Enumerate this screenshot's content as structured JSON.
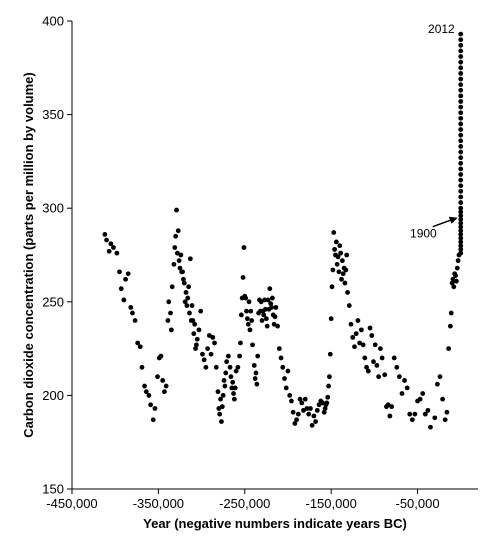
{
  "chart_data": {
    "type": "scatter",
    "title": "",
    "xlabel": "Year (negative numbers indicate years BC)",
    "ylabel": "Carbon dioxide concentration (parts per million by volume)",
    "xlim": [
      -450000,
      20000
    ],
    "ylim": [
      150,
      400
    ],
    "x_ticks": [
      "-450,000",
      "-350,000",
      "-250,000",
      "-150,000",
      "-50,000"
    ],
    "x_tick_values": [
      -450000,
      -350000,
      -250000,
      -150000,
      -50000
    ],
    "y_ticks": [
      "150",
      "200",
      "250",
      "300",
      "350",
      "400"
    ],
    "y_tick_values": [
      150,
      200,
      250,
      300,
      350,
      400
    ],
    "grid": false,
    "legend": "none",
    "marker_color": "#000000",
    "annotations": [
      {
        "text": "2012",
        "x": 0,
        "y": 394,
        "note": "label above top point of vertical series"
      },
      {
        "text": "1900",
        "x": 0,
        "y": 296,
        "note": "label with arrow pointing to series"
      }
    ],
    "points": [
      [
        -412000,
        286
      ],
      [
        -410000,
        283
      ],
      [
        -407000,
        277
      ],
      [
        -405000,
        281
      ],
      [
        -402000,
        279
      ],
      [
        -398000,
        276
      ],
      [
        -395000,
        266
      ],
      [
        -393000,
        257
      ],
      [
        -390000,
        251
      ],
      [
        -388000,
        262
      ],
      [
        -385000,
        265
      ],
      [
        -382000,
        247
      ],
      [
        -380000,
        244
      ],
      [
        -377000,
        240
      ],
      [
        -374000,
        228
      ],
      [
        -371000,
        226
      ],
      [
        -369000,
        215
      ],
      [
        -366000,
        205
      ],
      [
        -364000,
        202
      ],
      [
        -361000,
        200
      ],
      [
        -359000,
        195
      ],
      [
        -356000,
        187
      ],
      [
        -354000,
        193
      ],
      [
        -351000,
        210
      ],
      [
        -349000,
        220
      ],
      [
        -347000,
        221
      ],
      [
        -345000,
        208
      ],
      [
        -343000,
        202
      ],
      [
        -341000,
        205
      ],
      [
        -339000,
        240
      ],
      [
        -338000,
        250
      ],
      [
        -336000,
        244
      ],
      [
        -335000,
        235
      ],
      [
        -334000,
        258
      ],
      [
        -332000,
        270
      ],
      [
        -331000,
        279
      ],
      [
        -330000,
        285
      ],
      [
        -329000,
        299
      ],
      [
        -328000,
        276
      ],
      [
        -327000,
        288
      ],
      [
        -326000,
        272
      ],
      [
        -325000,
        268
      ],
      [
        -324000,
        275
      ],
      [
        -323000,
        266
      ],
      [
        -322000,
        266
      ],
      [
        -321000,
        262
      ],
      [
        -320000,
        260
      ],
      [
        -319000,
        250
      ],
      [
        -318000,
        255
      ],
      [
        -317000,
        248
      ],
      [
        -316000,
        252
      ],
      [
        -315000,
        258
      ],
      [
        -314000,
        244
      ],
      [
        -313000,
        273
      ],
      [
        -312000,
        240
      ],
      [
        -311000,
        248
      ],
      [
        -310000,
        240
      ],
      [
        -309000,
        233
      ],
      [
        -308000,
        238
      ],
      [
        -307000,
        225
      ],
      [
        -306000,
        227
      ],
      [
        -305000,
        230
      ],
      [
        -303000,
        235
      ],
      [
        -301000,
        245
      ],
      [
        -299000,
        222
      ],
      [
        -297000,
        219
      ],
      [
        -295000,
        215
      ],
      [
        -293000,
        225
      ],
      [
        -291000,
        232
      ],
      [
        -289000,
        222
      ],
      [
        -287000,
        231
      ],
      [
        -285000,
        228
      ],
      [
        -283000,
        215
      ],
      [
        -281000,
        202
      ],
      [
        -280000,
        193
      ],
      [
        -279000,
        190
      ],
      [
        -278000,
        198
      ],
      [
        -277000,
        186
      ],
      [
        -276000,
        194
      ],
      [
        -275000,
        200
      ],
      [
        -274000,
        208
      ],
      [
        -273000,
        205
      ],
      [
        -272000,
        212
      ],
      [
        -271000,
        218
      ],
      [
        -269000,
        221
      ],
      [
        -267000,
        215
      ],
      [
        -266000,
        210
      ],
      [
        -265000,
        204
      ],
      [
        -264000,
        207
      ],
      [
        -263000,
        201
      ],
      [
        -262000,
        198
      ],
      [
        -261000,
        204
      ],
      [
        -260000,
        213
      ],
      [
        -258000,
        215
      ],
      [
        -256000,
        221
      ],
      [
        -255000,
        228
      ],
      [
        -254000,
        243
      ],
      [
        -253000,
        252
      ],
      [
        -252000,
        263
      ],
      [
        -251000,
        279
      ],
      [
        -250000,
        253
      ],
      [
        -249000,
        252
      ],
      [
        -248000,
        245
      ],
      [
        -247000,
        241
      ],
      [
        -246000,
        238
      ],
      [
        -245000,
        250
      ],
      [
        -244000,
        235
      ],
      [
        -243000,
        245
      ],
      [
        -242000,
        240
      ],
      [
        -241000,
        227
      ],
      [
        -239000,
        216
      ],
      [
        -238000,
        209
      ],
      [
        -237000,
        212
      ],
      [
        -236000,
        206
      ],
      [
        -235000,
        221
      ],
      [
        -234000,
        244
      ],
      [
        -233000,
        251
      ],
      [
        -232000,
        245
      ],
      [
        -231000,
        250
      ],
      [
        -230000,
        240
      ],
      [
        -229000,
        245
      ],
      [
        -228000,
        243
      ],
      [
        -227000,
        251
      ],
      [
        -226000,
        246
      ],
      [
        -225000,
        241
      ],
      [
        -224000,
        237
      ],
      [
        -223000,
        251
      ],
      [
        -222000,
        246
      ],
      [
        -221000,
        257
      ],
      [
        -220000,
        249
      ],
      [
        -219000,
        247
      ],
      [
        -218000,
        252
      ],
      [
        -217000,
        243
      ],
      [
        -216000,
        238
      ],
      [
        -215000,
        242
      ],
      [
        -214000,
        247
      ],
      [
        -212000,
        237
      ],
      [
        -210000,
        225
      ],
      [
        -208000,
        220
      ],
      [
        -206000,
        215
      ],
      [
        -204000,
        209
      ],
      [
        -202000,
        204
      ],
      [
        -200000,
        213
      ],
      [
        -198000,
        200
      ],
      [
        -196000,
        197
      ],
      [
        -194000,
        191
      ],
      [
        -192000,
        185
      ],
      [
        -190000,
        187
      ],
      [
        -188000,
        190
      ],
      [
        -186000,
        198
      ],
      [
        -184000,
        196
      ],
      [
        -182000,
        192
      ],
      [
        -180000,
        198
      ],
      [
        -178000,
        193
      ],
      [
        -176000,
        190
      ],
      [
        -174000,
        193
      ],
      [
        -172000,
        184
      ],
      [
        -170000,
        189
      ],
      [
        -168000,
        186
      ],
      [
        -166000,
        192
      ],
      [
        -164000,
        195
      ],
      [
        -162000,
        197
      ],
      [
        -160000,
        196
      ],
      [
        -158000,
        191
      ],
      [
        -157000,
        193
      ],
      [
        -156000,
        195
      ],
      [
        -155000,
        196
      ],
      [
        -154000,
        199
      ],
      [
        -153000,
        205
      ],
      [
        -152000,
        210
      ],
      [
        -151000,
        222
      ],
      [
        -150000,
        241
      ],
      [
        -149000,
        258
      ],
      [
        -148000,
        267
      ],
      [
        -147000,
        287
      ],
      [
        -146000,
        278
      ],
      [
        -145000,
        275
      ],
      [
        -144000,
        282
      ],
      [
        -143000,
        270
      ],
      [
        -142000,
        274
      ],
      [
        -141000,
        266
      ],
      [
        -140000,
        280
      ],
      [
        -139000,
        276
      ],
      [
        -138000,
        262
      ],
      [
        -137000,
        272
      ],
      [
        -136000,
        265
      ],
      [
        -135000,
        268
      ],
      [
        -134000,
        260
      ],
      [
        -133000,
        267
      ],
      [
        -132000,
        275
      ],
      [
        -131000,
        255
      ],
      [
        -129000,
        248
      ],
      [
        -127000,
        238
      ],
      [
        -125000,
        231
      ],
      [
        -123000,
        226
      ],
      [
        -121000,
        233
      ],
      [
        -119000,
        240
      ],
      [
        -117000,
        228
      ],
      [
        -115000,
        235
      ],
      [
        -113000,
        227
      ],
      [
        -111000,
        220
      ],
      [
        -109000,
        215
      ],
      [
        -107000,
        213
      ],
      [
        -105000,
        236
      ],
      [
        -103000,
        232
      ],
      [
        -101000,
        218
      ],
      [
        -99000,
        227
      ],
      [
        -97000,
        216
      ],
      [
        -95000,
        210
      ],
      [
        -93000,
        225
      ],
      [
        -91000,
        220
      ],
      [
        -88000,
        211
      ],
      [
        -86000,
        194
      ],
      [
        -84000,
        195
      ],
      [
        -82000,
        189
      ],
      [
        -80000,
        194
      ],
      [
        -77000,
        220
      ],
      [
        -74000,
        215
      ],
      [
        -71000,
        210
      ],
      [
        -68000,
        201
      ],
      [
        -65000,
        208
      ],
      [
        -62000,
        204
      ],
      [
        -59000,
        190
      ],
      [
        -56000,
        187
      ],
      [
        -53000,
        190
      ],
      [
        -50000,
        197
      ],
      [
        -47000,
        198
      ],
      [
        -44000,
        201
      ],
      [
        -41000,
        190
      ],
      [
        -38000,
        192
      ],
      [
        -35000,
        183
      ],
      [
        -30000,
        188
      ],
      [
        -27000,
        206
      ],
      [
        -24000,
        210
      ],
      [
        -21000,
        198
      ],
      [
        -18000,
        187
      ],
      [
        -16000,
        191
      ],
      [
        -14000,
        225
      ],
      [
        -12000,
        237
      ],
      [
        -11000,
        244
      ],
      [
        -10000,
        260
      ],
      [
        -9000,
        262
      ],
      [
        -8000,
        258
      ],
      [
        -7000,
        265
      ],
      [
        -6000,
        264
      ],
      [
        -5000,
        261
      ],
      [
        -4000,
        268
      ],
      [
        -3000,
        272
      ],
      [
        -2000,
        275
      ],
      [
        0,
        276
      ],
      [
        0,
        278
      ],
      [
        0,
        280
      ],
      [
        0,
        282
      ],
      [
        0,
        284
      ],
      [
        0,
        286
      ],
      [
        0,
        288
      ],
      [
        0,
        290
      ],
      [
        0,
        292
      ],
      [
        0,
        294
      ],
      [
        0,
        296
      ],
      [
        0,
        298
      ],
      [
        0,
        300
      ],
      [
        0,
        303
      ],
      [
        0,
        306
      ],
      [
        0,
        309
      ],
      [
        0,
        312
      ],
      [
        0,
        315
      ],
      [
        0,
        318
      ],
      [
        0,
        321
      ],
      [
        0,
        324
      ],
      [
        0,
        327
      ],
      [
        0,
        330
      ],
      [
        0,
        333
      ],
      [
        0,
        336
      ],
      [
        0,
        339
      ],
      [
        0,
        342
      ],
      [
        0,
        345
      ],
      [
        0,
        348
      ],
      [
        0,
        351
      ],
      [
        0,
        354
      ],
      [
        0,
        357
      ],
      [
        0,
        360
      ],
      [
        0,
        363
      ],
      [
        0,
        366
      ],
      [
        0,
        369
      ],
      [
        0,
        372
      ],
      [
        0,
        375
      ],
      [
        0,
        378
      ],
      [
        0,
        381
      ],
      [
        0,
        384
      ],
      [
        0,
        387
      ],
      [
        0,
        390
      ],
      [
        0,
        393
      ]
    ]
  }
}
